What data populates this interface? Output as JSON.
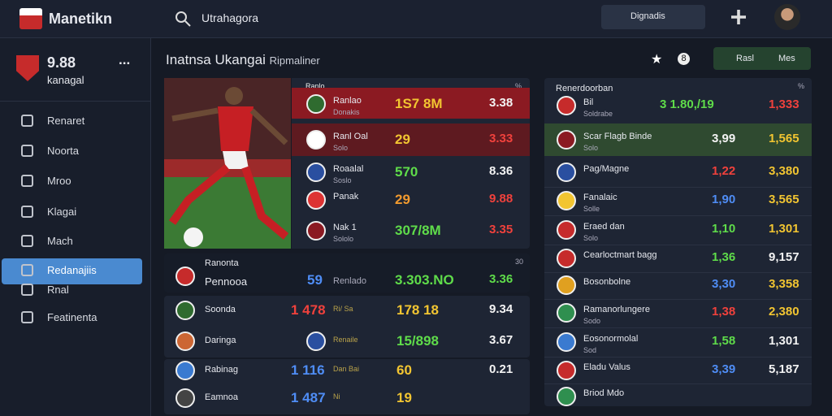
{
  "header": {
    "brand": "Manetikn",
    "search": "Utrahagora",
    "button": "Dignadis"
  },
  "sidebar": {
    "score": "9.88",
    "subtitle": "kanagal",
    "more": "...",
    "menu": [
      "Renaret",
      "Noorta",
      "Mroo",
      "Klagai",
      "Mach",
      "Redanajiis",
      "Rnal",
      "Featinenta"
    ]
  },
  "main": {
    "title": "Inatnsa Ukangai",
    "subtitle": "Ripmaliner",
    "badge": "8",
    "button_left": "Rasl",
    "button_right": "Mes"
  },
  "left_panel": {
    "header": "Ranlo",
    "corner": "%",
    "rows": [
      {
        "team": "Ranlao",
        "sub": "Donakis",
        "odds": "1S7 8M",
        "value": "3.38"
      },
      {
        "team": "Ranl Oal",
        "sub": "Solo",
        "odds": "29",
        "value": "3.33"
      },
      {
        "team": "Roaalal",
        "sub": "Soslo",
        "odds": "570",
        "value": "8.36"
      },
      {
        "team": "Panak",
        "sub": "",
        "odds": "29",
        "value": "9.88"
      },
      {
        "team": "Nak 1",
        "sub": "Sololo",
        "odds": "307/8M",
        "value": "3.35"
      }
    ]
  },
  "lower_panel": {
    "header": {
      "team": "Ranonta",
      "sub": "Pennooa",
      "num": "59",
      "label": "Renlado",
      "odds": "3.303.NO",
      "value": "3.36",
      "corner": "30"
    },
    "rows": [
      {
        "team": "Soonda",
        "num": "1 478",
        "label": "Ri/ Sa",
        "odds": "178 18",
        "value": "9.34"
      },
      {
        "team": "Daringa",
        "num": "",
        "label": "Renaile",
        "odds": "15/898",
        "value": "3.67"
      },
      {
        "team": "Rabinag",
        "num": "1 116",
        "label": "Dan Bai",
        "odds": "60",
        "value": "0.21"
      },
      {
        "team": "Eamnoa",
        "num": "1 487",
        "label": "Ni",
        "odds": "19",
        "value": ""
      }
    ]
  },
  "right_panel": {
    "header": "Renerdoorban",
    "corner": "%",
    "rows": [
      {
        "team": "Bil",
        "sub": "Soldrabe",
        "odds": "3 1.80,/19",
        "value": "1,333"
      },
      {
        "team": "Scar Flagb Binde",
        "sub": "Solo",
        "odds": "3,99",
        "value": "1,565"
      },
      {
        "team": "Pag/Magne",
        "sub": "",
        "odds": "1,22",
        "value": "3,380"
      },
      {
        "team": "Fanalaic",
        "sub": "Solle",
        "odds": "1,90",
        "value": "3,565"
      },
      {
        "team": "Eraed dan",
        "sub": "Solo",
        "odds": "1,10",
        "value": "1,301"
      },
      {
        "team": "Cearloctmart bagg",
        "sub": "",
        "odds": "1,36",
        "value": "9,157"
      },
      {
        "team": "Bosonbolne",
        "sub": "",
        "odds": "3,30",
        "value": "3,358"
      },
      {
        "team": "Ramanorlungere",
        "sub": "Sodo",
        "odds": "1,38",
        "value": "2,380"
      },
      {
        "team": "Eosonormolal",
        "sub": "Sod",
        "odds": "1,58",
        "value": "1,301"
      },
      {
        "team": "Eladu Valus",
        "sub": "",
        "odds": "3,39",
        "value": "5,187"
      },
      {
        "team": "Briod Mdo",
        "sub": "",
        "odds": "",
        "value": ""
      }
    ]
  }
}
